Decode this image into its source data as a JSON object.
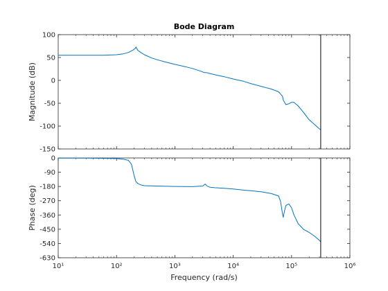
{
  "chart_data": [
    {
      "type": "line",
      "title": "Bode Diagram",
      "xlabel": "",
      "ylabel": "Magnitude (dB)",
      "xscale": "log",
      "xlim": [
        10,
        1000000
      ],
      "ylim": [
        -150,
        100
      ],
      "yticks": [
        100,
        50,
        0,
        -50,
        -100,
        -150
      ],
      "ytick_labels": [
        "100",
        "50",
        "0",
        "-50",
        "-100",
        "-150"
      ],
      "xtick_labels": [],
      "grid": false,
      "line_color": "#0072bd",
      "vline_x": 316228,
      "series": [
        {
          "x": [
            10,
            30,
            60,
            100,
            130,
            160,
            190,
            210,
            215,
            230,
            260,
            300,
            400,
            500,
            700,
            1000,
            1500,
            2000,
            2800,
            3200,
            3500,
            4000,
            5000,
            7000,
            10000,
            15000,
            20000,
            30000,
            45000,
            60000,
            65000,
            70000,
            72000,
            80000,
            90000,
            100000,
            110000,
            130000,
            160000,
            200000,
            250000,
            300000,
            316228
          ],
          "y": [
            55,
            55,
            55,
            56,
            58,
            61,
            66,
            70,
            73,
            66,
            61,
            56,
            49,
            45,
            40,
            35,
            30,
            26,
            20,
            17,
            17,
            15,
            12,
            8,
            3,
            -2,
            -7,
            -13,
            -19,
            -25,
            -30,
            -35,
            -43,
            -53,
            -51,
            -48,
            -48,
            -56,
            -70,
            -86,
            -97,
            -106,
            -108
          ]
        }
      ]
    },
    {
      "type": "line",
      "title": "",
      "xlabel": "Frequency  (rad/s)",
      "ylabel": "Phase (deg)",
      "xscale": "log",
      "xlim": [
        10,
        1000000
      ],
      "ylim": [
        -630,
        0
      ],
      "yticks": [
        0,
        -90,
        -180,
        -270,
        -360,
        -450,
        -540,
        -630
      ],
      "ytick_labels": [
        "0",
        "-90",
        "-180",
        "-270",
        "-360",
        "-450",
        "-540",
        "-630"
      ],
      "xticks": [
        10,
        100,
        1000,
        10000,
        100000,
        1000000
      ],
      "xtick_labels": [
        "10¹",
        "10²",
        "10³",
        "10⁴",
        "10⁵",
        "10⁶"
      ],
      "grid": false,
      "line_color": "#0072bd",
      "vline_x": 316228,
      "series": [
        {
          "x": [
            10,
            30,
            60,
            100,
            130,
            160,
            180,
            200,
            215,
            230,
            260,
            300,
            500,
            1000,
            2000,
            3000,
            3300,
            3600,
            4000,
            5000,
            7000,
            10000,
            15000,
            20000,
            30000,
            45000,
            60000,
            65000,
            70000,
            72000,
            75000,
            80000,
            90000,
            100000,
            110000,
            130000,
            160000,
            200000,
            250000,
            300000,
            316228
          ],
          "y": [
            -1,
            -1,
            -2,
            -4,
            -8,
            -15,
            -40,
            -110,
            -150,
            -160,
            -170,
            -175,
            -177,
            -180,
            -181,
            -177,
            -165,
            -178,
            -185,
            -188,
            -191,
            -196,
            -203,
            -207,
            -213,
            -225,
            -240,
            -275,
            -355,
            -375,
            -340,
            -300,
            -290,
            -315,
            -360,
            -415,
            -450,
            -470,
            -495,
            -520,
            -530
          ]
        }
      ]
    }
  ]
}
